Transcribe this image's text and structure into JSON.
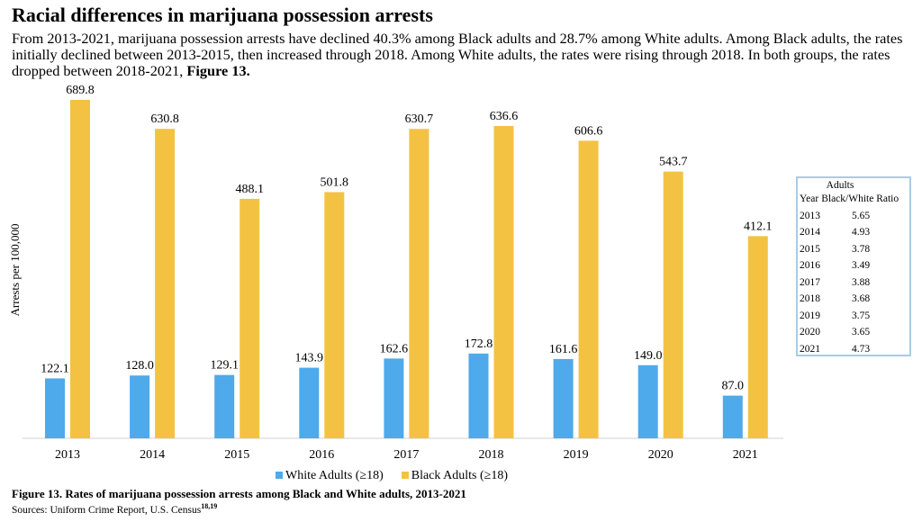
{
  "title": "Racial differences in marijuana possession arrests",
  "intro": "From 2013-2021, marijuana possession arrests  have declined 40.3% among Black adults and 28.7% among White adults. Among Black adults, the rates initially declined between 2013-2015, then increased through 2018. Among White adults, the rates were rising through 2018. In both groups, the rates dropped between 2018-2021, ",
  "intro_bold": "Figure 13.",
  "chart_data": {
    "type": "bar",
    "ylabel": "Arrests per 100,000",
    "xlabel": "",
    "categories": [
      "2013",
      "2014",
      "2015",
      "2016",
      "2017",
      "2018",
      "2019",
      "2020",
      "2021"
    ],
    "series": [
      {
        "name": "White Adults (≥18)",
        "color": "#4eaaea",
        "values": [
          122.1,
          128.0,
          129.1,
          143.9,
          162.6,
          172.8,
          161.6,
          149.0,
          87.0
        ]
      },
      {
        "name": "Black Adults (≥18)",
        "color": "#f4c243",
        "values": [
          689.8,
          630.8,
          488.1,
          501.8,
          630.7,
          636.6,
          606.6,
          543.7,
          412.1
        ]
      }
    ],
    "ylim": [
      0,
      700
    ],
    "grid": false,
    "legend": "bottom"
  },
  "ratio_table": {
    "title": "Adults",
    "headers": [
      "Year",
      "Black/White Ratio"
    ],
    "rows": [
      [
        "2013",
        "5.65"
      ],
      [
        "2014",
        "4.93"
      ],
      [
        "2015",
        "3.78"
      ],
      [
        "2016",
        "3.49"
      ],
      [
        "2017",
        "3.88"
      ],
      [
        "2018",
        "3.68"
      ],
      [
        "2019",
        "3.75"
      ],
      [
        "2020",
        "3.65"
      ],
      [
        "2021",
        "4.73"
      ]
    ]
  },
  "caption": "Figure 13.  Rates of marijuana possession arrests among Black and White adults, 2013-2021",
  "sources": "Sources: Uniform Crime Report, U.S. Census",
  "sources_refs": "18,19"
}
